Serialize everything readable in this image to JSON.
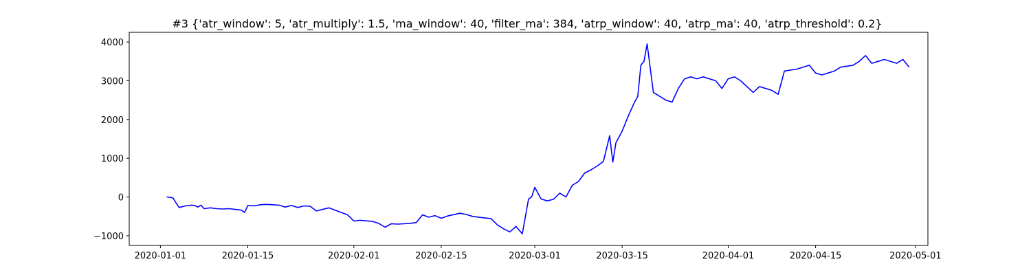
{
  "chart_data": {
    "type": "line",
    "title": "#3 {'atr_window': 5, 'atr_multiply': 1.5, 'ma_window': 40, 'filter_ma': 384, 'atrp_window': 40, 'atrp_ma': 40, 'atrp_threshold': 0.2}",
    "xlabel": "",
    "ylabel": "",
    "x_axis_type": "date",
    "xlim": [
      "2019-12-27",
      "2020-05-03"
    ],
    "ylim": [
      -1250,
      4250
    ],
    "x_ticks": [
      "2020-01-01",
      "2020-01-15",
      "2020-02-01",
      "2020-02-15",
      "2020-03-01",
      "2020-03-15",
      "2020-04-01",
      "2020-04-15",
      "2020-05-01"
    ],
    "y_ticks": [
      -1000,
      0,
      1000,
      2000,
      3000,
      4000
    ],
    "y_tick_labels": [
      "−1000",
      "0",
      "1000",
      "2000",
      "3000",
      "4000"
    ],
    "grid": false,
    "legend": "none",
    "line_color": "#0000ff",
    "series": [
      {
        "x": [
          "2020-01-02",
          "2020-01-03",
          "2020-01-03",
          "2020-01-04",
          "2020-01-05",
          "2020-01-06",
          "2020-01-06",
          "2020-01-07",
          "2020-01-07",
          "2020-01-08",
          "2020-01-09",
          "2020-01-10",
          "2020-01-11",
          "2020-01-12",
          "2020-01-13",
          "2020-01-14",
          "2020-01-14",
          "2020-01-15",
          "2020-01-16",
          "2020-01-17",
          "2020-01-18",
          "2020-01-19",
          "2020-01-20",
          "2020-01-21",
          "2020-01-22",
          "2020-01-23",
          "2020-01-24",
          "2020-01-25",
          "2020-01-26",
          "2020-01-28",
          "2020-01-29",
          "2020-01-30",
          "2020-01-31",
          "2020-02-01",
          "2020-02-02",
          "2020-02-04",
          "2020-02-05",
          "2020-02-06",
          "2020-02-07",
          "2020-02-08",
          "2020-02-10",
          "2020-02-11",
          "2020-02-12",
          "2020-02-13",
          "2020-02-14",
          "2020-02-15",
          "2020-02-16",
          "2020-02-18",
          "2020-02-19",
          "2020-02-20",
          "2020-02-21",
          "2020-02-23",
          "2020-02-24",
          "2020-02-25",
          "2020-02-26",
          "2020-02-27",
          "2020-02-28",
          "2020-02-29",
          "2020-02-29",
          "2020-03-01",
          "2020-03-02",
          "2020-03-03",
          "2020-03-04",
          "2020-03-05",
          "2020-03-06",
          "2020-03-07",
          "2020-03-08",
          "2020-03-09",
          "2020-03-10",
          "2020-03-11",
          "2020-03-12",
          "2020-03-13",
          "2020-03-13",
          "2020-03-14",
          "2020-03-15",
          "2020-03-16",
          "2020-03-17",
          "2020-03-17",
          "2020-03-18",
          "2020-03-18",
          "2020-03-19",
          "2020-03-20",
          "2020-03-22",
          "2020-03-23",
          "2020-03-24",
          "2020-03-25",
          "2020-03-26",
          "2020-03-27",
          "2020-03-28",
          "2020-03-30",
          "2020-03-31",
          "2020-04-01",
          "2020-04-02",
          "2020-04-03",
          "2020-04-05",
          "2020-04-06",
          "2020-04-07",
          "2020-04-08",
          "2020-04-09",
          "2020-04-10",
          "2020-04-12",
          "2020-04-14",
          "2020-04-15",
          "2020-04-16",
          "2020-04-17",
          "2020-04-18",
          "2020-04-19",
          "2020-04-21",
          "2020-04-22",
          "2020-04-23",
          "2020-04-24",
          "2020-04-25",
          "2020-04-26",
          "2020-04-28",
          "2020-04-29",
          "2020-04-30"
        ],
        "y": [
          0,
          -20,
          -150,
          -270,
          -230,
          -210,
          -220,
          -260,
          -210,
          -300,
          -280,
          -300,
          -310,
          -300,
          -320,
          -340,
          -400,
          -220,
          -230,
          -200,
          -190,
          -200,
          -210,
          -260,
          -220,
          -270,
          -230,
          -240,
          -360,
          -280,
          -340,
          -400,
          -460,
          -620,
          -600,
          -630,
          -680,
          -780,
          -690,
          -700,
          -680,
          -660,
          -460,
          -520,
          -480,
          -550,
          -490,
          -420,
          -450,
          -500,
          -520,
          -560,
          -720,
          -820,
          -900,
          -760,
          -950,
          -50,
          0,
          250,
          -50,
          -100,
          -60,
          100,
          0,
          300,
          400,
          620,
          700,
          800,
          920,
          1580,
          900,
          1400,
          1700,
          2100,
          2450,
          2600,
          3400,
          3500,
          3950,
          2700,
          2500,
          2450,
          2800,
          3050,
          3100,
          3050,
          3100,
          3000,
          2800,
          3050,
          3100,
          3000,
          2700,
          2850,
          2800,
          2750,
          2650,
          3250,
          3300,
          3400,
          3200,
          3150,
          3200,
          3250,
          3350,
          3400,
          3500,
          3650,
          3450,
          3500,
          3550,
          3450,
          3550,
          3350
        ]
      }
    ]
  }
}
